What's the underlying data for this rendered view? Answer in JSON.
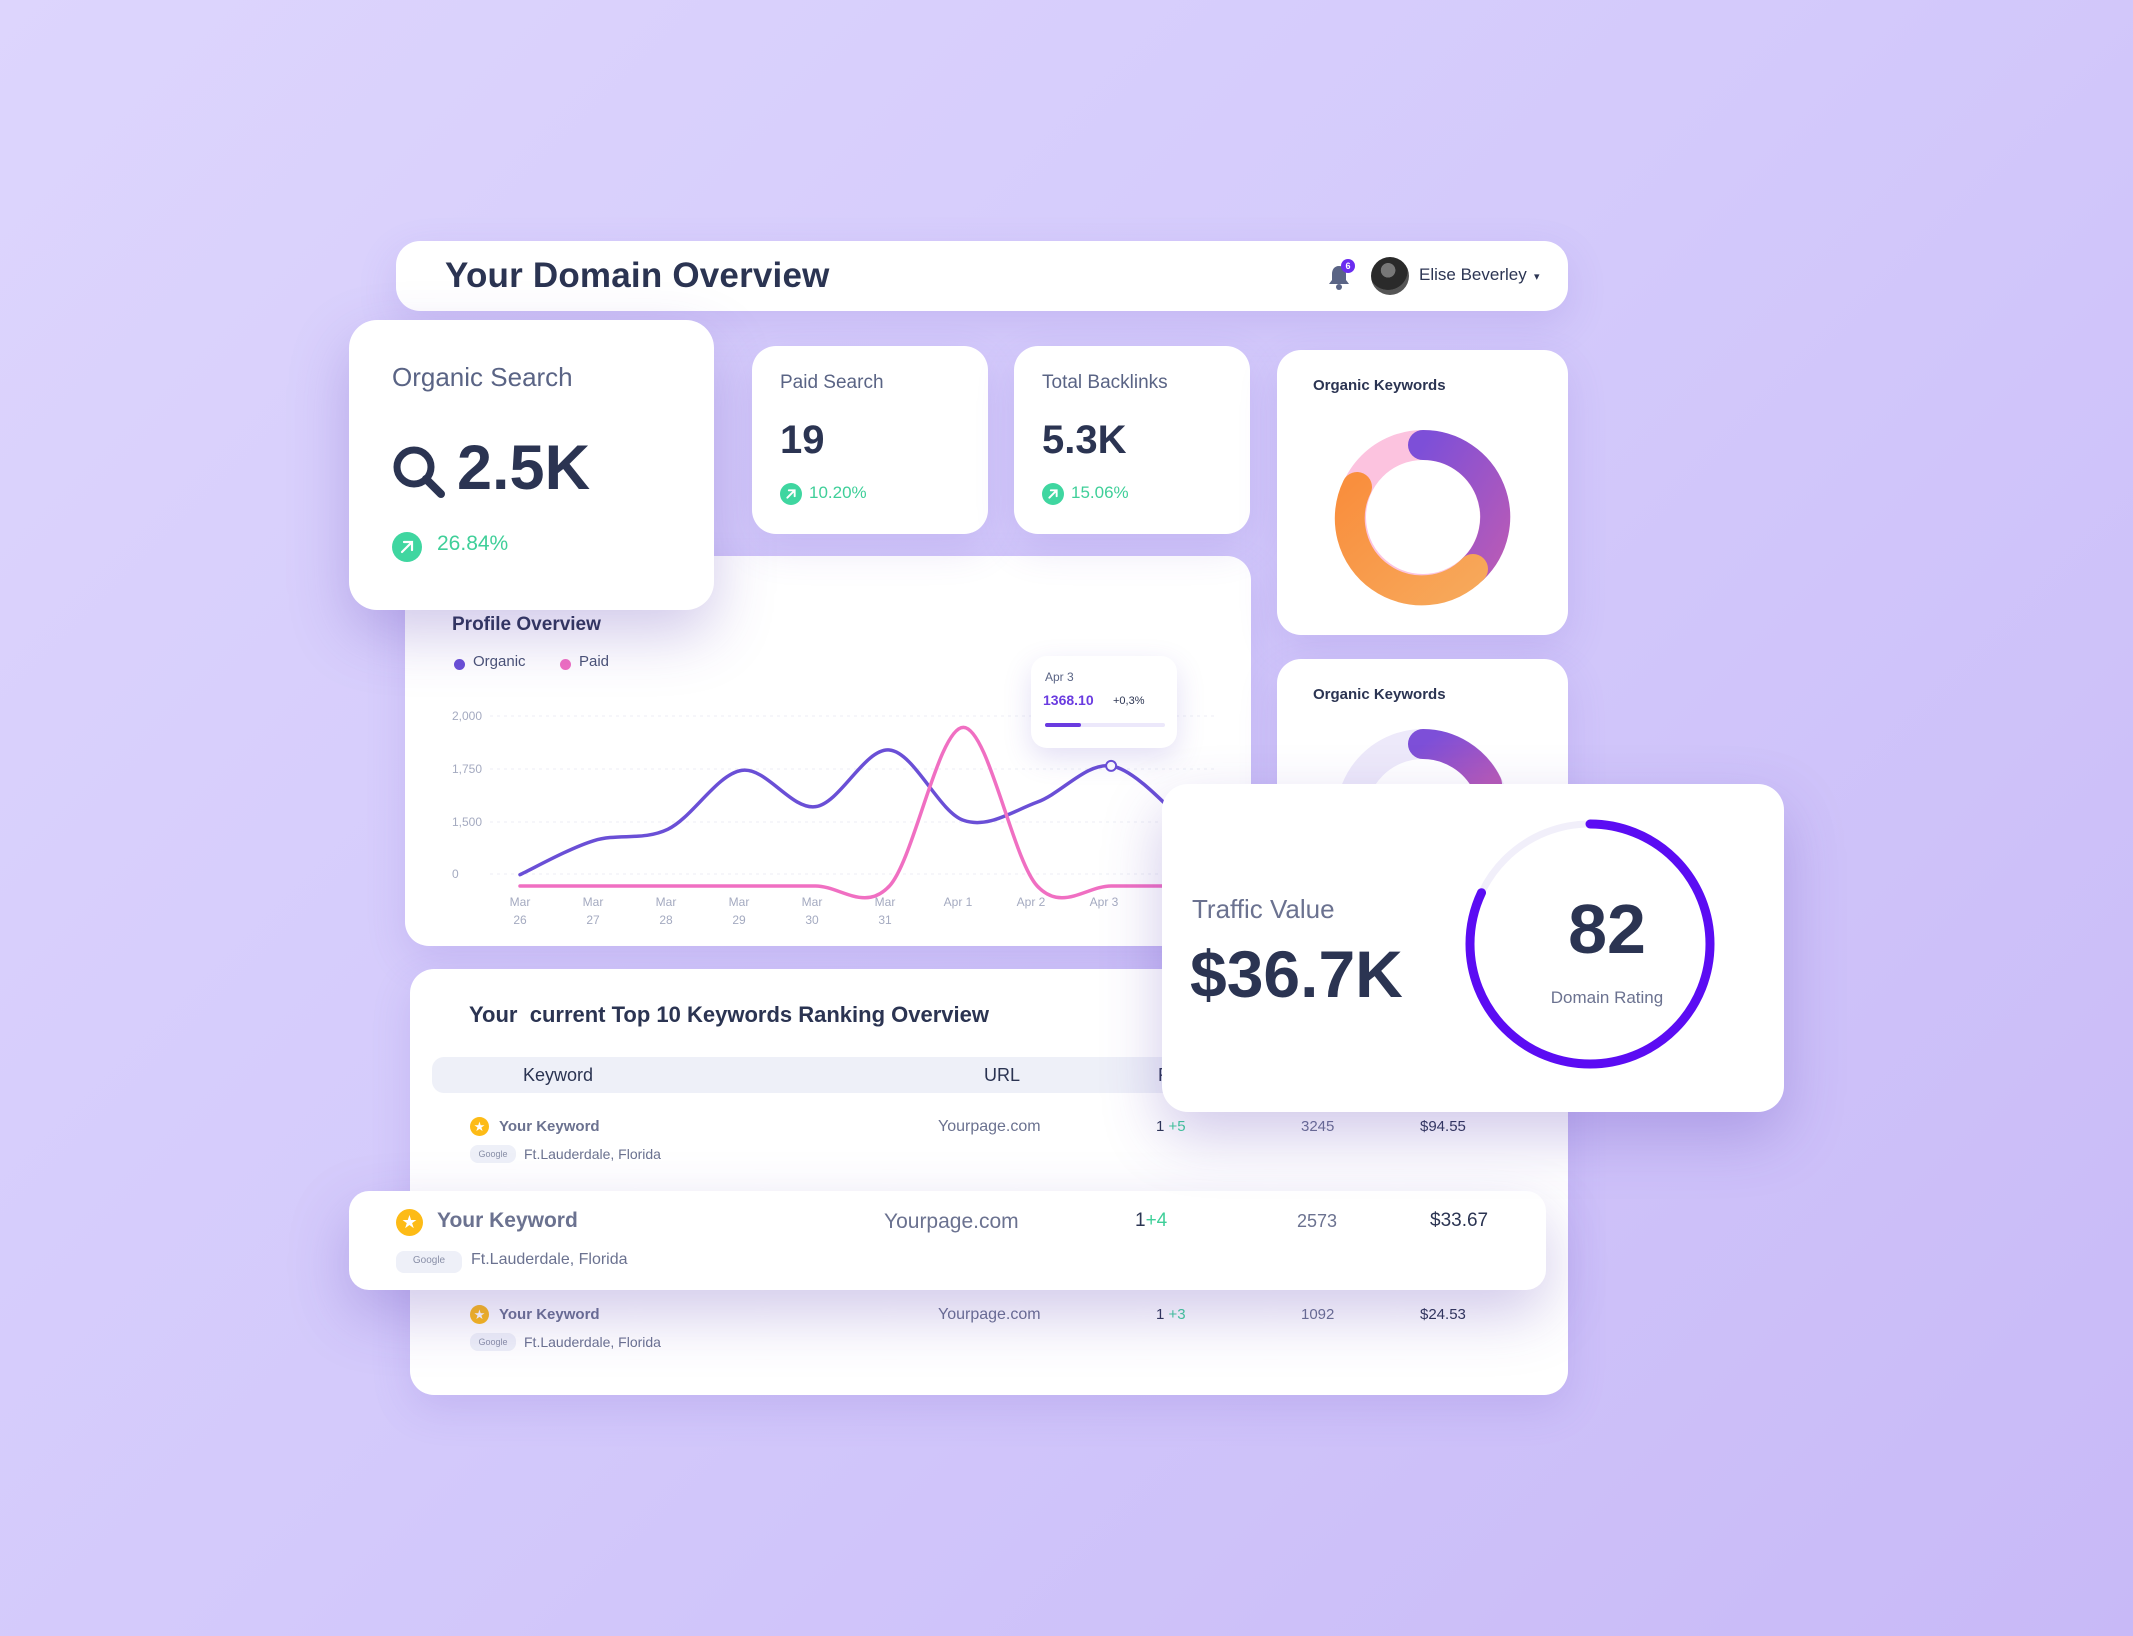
{
  "header": {
    "title": "Your Domain Overview",
    "notification_count": "6",
    "user_name": "Elise Beverley",
    "caret": "▾"
  },
  "stats": {
    "organic_search": {
      "label": "Organic Search",
      "value": "2.5K",
      "change": "26.84%"
    },
    "paid_search": {
      "label": "Paid Search",
      "value": "19",
      "change": "10.20%"
    },
    "total_backlinks": {
      "label": "Total Backlinks",
      "value": "5.3K",
      "change": "15.06%"
    }
  },
  "donuts": [
    {
      "title": "Organic Keywords"
    },
    {
      "title": "Organic Keywords"
    }
  ],
  "profile_overview": {
    "title": "Profile Overview",
    "legend": [
      {
        "label": "Organic",
        "color": "#6a4fd6"
      },
      {
        "label": "Paid",
        "color": "#f06fc2"
      }
    ],
    "tooltip": {
      "date": "Apr 3",
      "value": "1368.10",
      "change": "+0,3%",
      "progress": 0.3
    }
  },
  "chart_data": {
    "type": "line",
    "y_tick_labels": [
      "2,000",
      "1,750",
      "1,500",
      "0"
    ],
    "x_tick_labels": [
      [
        "Mar",
        "26"
      ],
      [
        "Mar",
        "27"
      ],
      [
        "Mar",
        "28"
      ],
      [
        "Mar",
        "29"
      ],
      [
        "Mar",
        "30"
      ],
      [
        "Mar",
        "31"
      ],
      [
        "Apr 1",
        ""
      ],
      [
        "Apr 2",
        ""
      ],
      [
        "Apr 3",
        ""
      ]
    ],
    "series": [
      {
        "name": "Organic",
        "color": "#6a4fd6",
        "values": [
          1300,
          1450,
          1500,
          1760,
          1600,
          1850,
          1540,
          1620,
          1780,
          1530
        ]
      },
      {
        "name": "Paid",
        "color": "#f06fc2",
        "values": [
          1250,
          1250,
          1250,
          1250,
          1250,
          1250,
          1950,
          1250,
          1250,
          1250
        ]
      }
    ]
  },
  "keywords_table": {
    "title": "Your  current Top 10 Keywords Ranking Overview",
    "columns": [
      "Keyword",
      "URL",
      "Ra"
    ],
    "rows": [
      {
        "keyword": "Your Keyword",
        "engine": "Google",
        "location": "Ft.Lauderdale, Florida",
        "url": "Yourpage.com",
        "rank": "1",
        "delta": "+5",
        "volume": "3245",
        "cpc": "$94.55"
      },
      {
        "keyword": "Your Keyword",
        "engine": "Google",
        "location": "Ft.Lauderdale, Florida",
        "url": "Yourpage.com",
        "rank": "1",
        "delta": "+4",
        "volume": "2573",
        "cpc": "$33.67"
      },
      {
        "keyword": "Your Keyword",
        "engine": "Google",
        "location": "Ft.Lauderdale, Florida",
        "url": "Yourpage.com",
        "rank": "1",
        "delta": "+3",
        "volume": "1092",
        "cpc": "$24.53"
      }
    ]
  },
  "traffic": {
    "label": "Traffic Value",
    "value": "$36.7K",
    "domain_rating": "82",
    "domain_rating_label": "Domain Rating",
    "domain_rating_fraction": 0.82,
    "ring_color": "#5b0cf3"
  },
  "icons": {
    "bell": "bell-icon",
    "search": "search-icon",
    "arrow": "arrow-up-right-icon",
    "star": "star-icon"
  }
}
